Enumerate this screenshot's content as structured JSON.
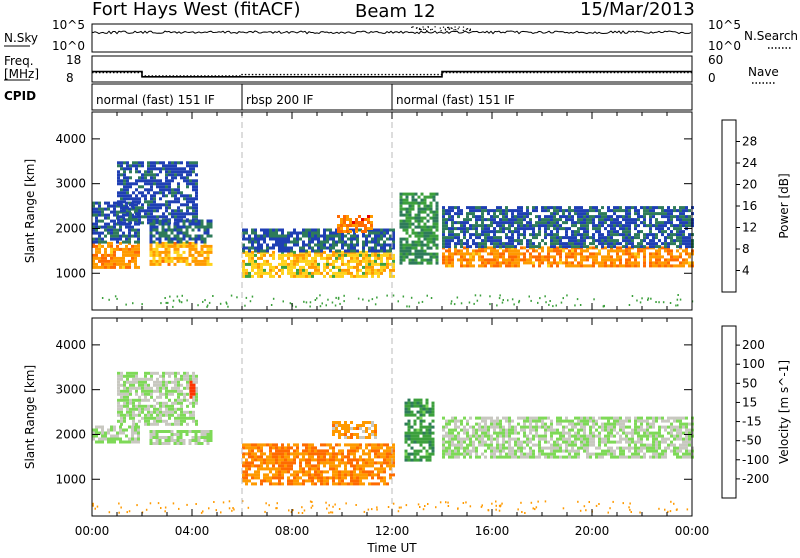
{
  "header": {
    "station": "Fort Hays West (fitACF)",
    "beam": "Beam 12",
    "date": "15/Mar/2013"
  },
  "labels": {
    "nsky": "N.Sky",
    "nsearch": "N.Search",
    "freq": "Freq.",
    "freq_unit": "[MHz]",
    "nave": "Nave",
    "cpid": "CPID"
  },
  "noise_panel": {
    "left_ticks": [
      "10^5",
      "10^0"
    ],
    "right_ticks": [
      "10^5",
      "10^0"
    ]
  },
  "freq_panel": {
    "left_ticks": [
      "18",
      "8"
    ],
    "right_ticks": [
      "60",
      "0"
    ],
    "freq_segments": [
      {
        "start": 0.0,
        "end": 2.0,
        "mhz": 12.0
      },
      {
        "start": 2.0,
        "end": 14.0,
        "mhz": 10.0
      },
      {
        "start": 14.0,
        "end": 24.0,
        "mhz": 12.0
      }
    ],
    "nave_segments": [
      {
        "start": 0.0,
        "end": 2.0,
        "nave": 22
      },
      {
        "start": 2.0,
        "end": 6.0,
        "nave": 14
      },
      {
        "start": 6.0,
        "end": 14.0,
        "nave": 17
      },
      {
        "start": 14.0,
        "end": 24.0,
        "nave": 22
      }
    ]
  },
  "cpid": [
    {
      "label": "normal (fast) 151 IF",
      "start": 0.0,
      "end": 6.0
    },
    {
      "label": "rbsp 200 IF",
      "start": 6.0,
      "end": 12.0
    },
    {
      "label": "normal (fast) 151 IF",
      "start": 12.0,
      "end": 24.0
    }
  ],
  "chart_data": [
    {
      "type": "heatmap",
      "title": "",
      "variable": "Power",
      "xlabel": "Time UT",
      "ylabel": "Slant Range [km]",
      "colorbar_label": "Power [dB]",
      "colorbar_ticks": [
        "28",
        "24",
        "20",
        "16",
        "12",
        "8",
        "4"
      ],
      "colors": [
        "#e60000",
        "#ff6a00",
        "#ff9a00",
        "#ffd21a",
        "#3ca03c",
        "#2e7b5a",
        "#1f3fb4",
        "#1020ff"
      ],
      "xlim": [
        0,
        24
      ],
      "ylim": [
        180,
        4600
      ],
      "yticks": [
        "4000",
        "3000",
        "2000",
        "1000"
      ],
      "blobs": [
        {
          "t0": 0.0,
          "t1": 1.9,
          "r0": 1100,
          "r1": 1700,
          "level": 20
        },
        {
          "t0": 0.0,
          "t1": 1.9,
          "r0": 1700,
          "r1": 2600,
          "level": 6
        },
        {
          "t0": 1.0,
          "t1": 4.2,
          "r0": 2100,
          "r1": 3500,
          "level": 5
        },
        {
          "t0": 2.3,
          "t1": 4.8,
          "r0": 1200,
          "r1": 1700,
          "level": 18
        },
        {
          "t0": 2.3,
          "t1": 4.8,
          "r0": 1700,
          "r1": 2200,
          "level": 7
        },
        {
          "t0": 6.0,
          "t1": 12.1,
          "r0": 900,
          "r1": 1500,
          "level": 16
        },
        {
          "t0": 6.0,
          "t1": 12.1,
          "r0": 1500,
          "r1": 2000,
          "level": 6
        },
        {
          "t0": 9.8,
          "t1": 11.2,
          "r0": 1950,
          "r1": 2300,
          "level": 22
        },
        {
          "t0": 12.3,
          "t1": 13.8,
          "r0": 1200,
          "r1": 2800,
          "level": 10
        },
        {
          "t0": 14.0,
          "t1": 24.0,
          "r0": 1150,
          "r1": 1600,
          "level": 20
        },
        {
          "t0": 14.0,
          "t1": 24.0,
          "r0": 1600,
          "r1": 2500,
          "level": 6
        }
      ]
    },
    {
      "type": "heatmap",
      "title": "",
      "variable": "Velocity",
      "xlabel": "Time UT",
      "ylabel": "Slant Range [km]",
      "colorbar_label": "Velocity [m s^-1]",
      "colorbar_ticks": [
        "200",
        "100",
        "50",
        "15",
        "-15",
        "-50",
        "-100",
        "-200"
      ],
      "colors": [
        "#1a3cb4",
        "#2e7b5a",
        "#3ca03c",
        "#7ed957",
        "#c8c8c0",
        "#ff9a00",
        "#ff6a00",
        "#ff3300",
        "#e60000"
      ],
      "xlim": [
        0,
        24
      ],
      "ylim": [
        180,
        4600
      ],
      "yticks": [
        "4000",
        "3000",
        "2000",
        "1000"
      ],
      "xticks": [
        "00:00",
        "04:00",
        "08:00",
        "12:00",
        "16:00",
        "20:00",
        "00:00"
      ],
      "blobs": [
        {
          "t0": 0.0,
          "t1": 1.9,
          "r0": 1800,
          "r1": 2200,
          "level": 0
        },
        {
          "t0": 1.0,
          "t1": 4.2,
          "r0": 2200,
          "r1": 3400,
          "level": 0
        },
        {
          "t0": 2.3,
          "t1": 4.8,
          "r0": 1800,
          "r1": 2100,
          "level": 0
        },
        {
          "t0": 3.9,
          "t1": 4.1,
          "r0": 2800,
          "r1": 3200,
          "level": -200
        },
        {
          "t0": 6.0,
          "t1": 12.1,
          "r0": 900,
          "r1": 1800,
          "level": -70
        },
        {
          "t0": 9.6,
          "t1": 11.4,
          "r0": 1950,
          "r1": 2300,
          "level": -50
        },
        {
          "t0": 12.5,
          "t1": 13.7,
          "r0": 1400,
          "r1": 2800,
          "level": 60
        },
        {
          "t0": 14.0,
          "t1": 24.0,
          "r0": 1500,
          "r1": 2400,
          "level": 0
        }
      ]
    }
  ]
}
